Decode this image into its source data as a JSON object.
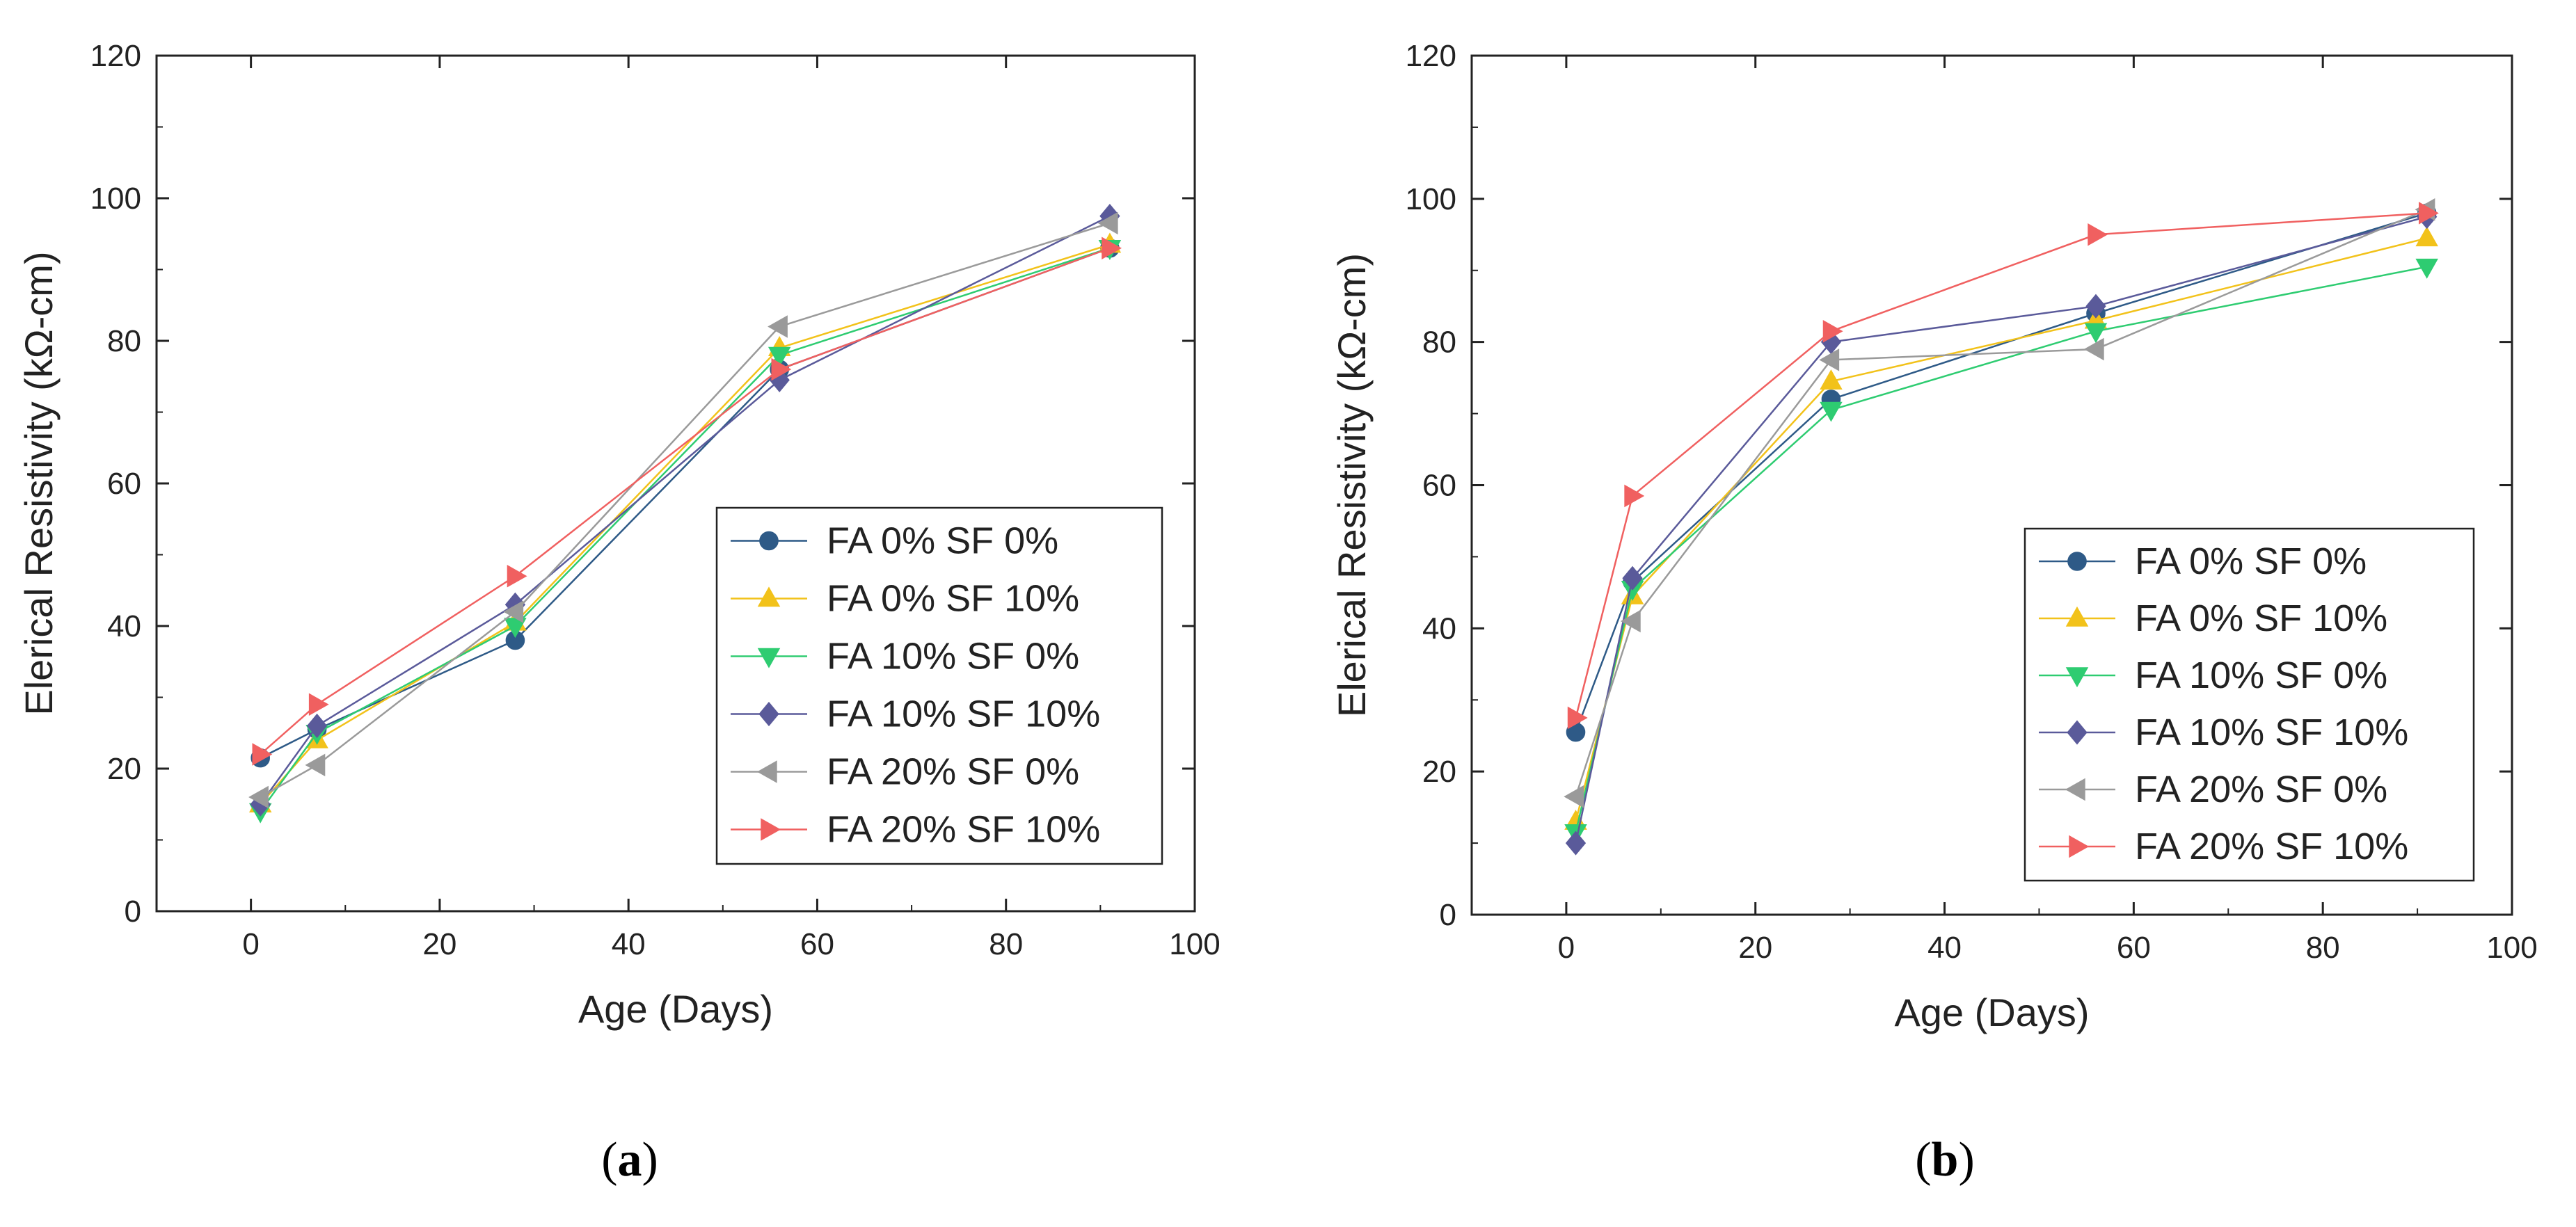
{
  "chart_data": [
    {
      "type": "line",
      "panel_label": "a",
      "xlabel": "Age (Days)",
      "ylabel": "Elerical Resistivity (kΩ-cm)",
      "xlim": [
        -10,
        100
      ],
      "ylim": [
        0,
        120
      ],
      "xticks": [
        0,
        20,
        40,
        60,
        80,
        100
      ],
      "yticks": [
        0,
        20,
        40,
        60,
        80,
        100,
        120
      ],
      "legend_position": "center-right",
      "series": [
        {
          "name": "FA 0% SF 0%",
          "color": "#2e5a87",
          "marker": "circle",
          "x": [
            1,
            7,
            28,
            56,
            91
          ],
          "y": [
            21.5,
            25.5,
            38,
            76,
            93
          ]
        },
        {
          "name": "FA 0% SF 10%",
          "color": "#f2c21a",
          "marker": "triangle-up",
          "x": [
            1,
            7,
            28,
            56,
            91
          ],
          "y": [
            15,
            24,
            40.5,
            79,
            93.5
          ]
        },
        {
          "name": "FA 10% SF 0%",
          "color": "#2ecc71",
          "marker": "triangle-down",
          "x": [
            1,
            7,
            28,
            56,
            91
          ],
          "y": [
            14,
            25,
            40,
            78,
            93
          ]
        },
        {
          "name": "FA 10% SF 10%",
          "color": "#5a5a9a",
          "marker": "diamond",
          "x": [
            1,
            7,
            28,
            56,
            91
          ],
          "y": [
            15,
            26,
            43,
            74.5,
            97.5
          ]
        },
        {
          "name": "FA 20% SF 0%",
          "color": "#9a9a9a",
          "marker": "triangle-left",
          "x": [
            1,
            7,
            28,
            56,
            91
          ],
          "y": [
            16,
            20.5,
            42,
            82,
            96.5
          ]
        },
        {
          "name": "FA 20% SF 10%",
          "color": "#f06060",
          "marker": "triangle-right",
          "x": [
            1,
            7,
            28,
            56,
            91
          ],
          "y": [
            22,
            29,
            47,
            76,
            93
          ]
        }
      ]
    },
    {
      "type": "line",
      "panel_label": "b",
      "xlabel": "Age (Days)",
      "ylabel": "Elerical Resistivity (kΩ-cm)",
      "xlim": [
        -10,
        100
      ],
      "ylim": [
        0,
        120
      ],
      "xticks": [
        0,
        20,
        40,
        60,
        80,
        100
      ],
      "yticks": [
        0,
        20,
        40,
        60,
        80,
        100,
        120
      ],
      "legend_position": "center-right",
      "series": [
        {
          "name": "FA 0% SF 0%",
          "color": "#2e5a87",
          "marker": "circle",
          "x": [
            1,
            7,
            28,
            56,
            91
          ],
          "y": [
            25.5,
            46.5,
            72,
            84,
            98
          ]
        },
        {
          "name": "FA 0% SF 10%",
          "color": "#f2c21a",
          "marker": "triangle-up",
          "x": [
            1,
            7,
            28,
            56,
            91
          ],
          "y": [
            13,
            44.5,
            74.5,
            83,
            94.5
          ]
        },
        {
          "name": "FA 10% SF 0%",
          "color": "#2ecc71",
          "marker": "triangle-down",
          "x": [
            1,
            7,
            28,
            56,
            91
          ],
          "y": [
            11.5,
            45.5,
            70.5,
            81.5,
            90.5
          ]
        },
        {
          "name": "FA 10% SF 10%",
          "color": "#5a5a9a",
          "marker": "diamond",
          "x": [
            1,
            7,
            28,
            56,
            91
          ],
          "y": [
            10,
            47,
            80,
            85,
            97.5
          ]
        },
        {
          "name": "FA 20% SF 0%",
          "color": "#9a9a9a",
          "marker": "triangle-left",
          "x": [
            1,
            7,
            28,
            56,
            91
          ],
          "y": [
            16.5,
            41,
            77.5,
            79,
            98.5
          ]
        },
        {
          "name": "FA 20% SF 10%",
          "color": "#f06060",
          "marker": "triangle-right",
          "x": [
            1,
            7,
            28,
            56,
            91
          ],
          "y": [
            27.5,
            58.5,
            81.5,
            95,
            98
          ]
        }
      ]
    }
  ]
}
